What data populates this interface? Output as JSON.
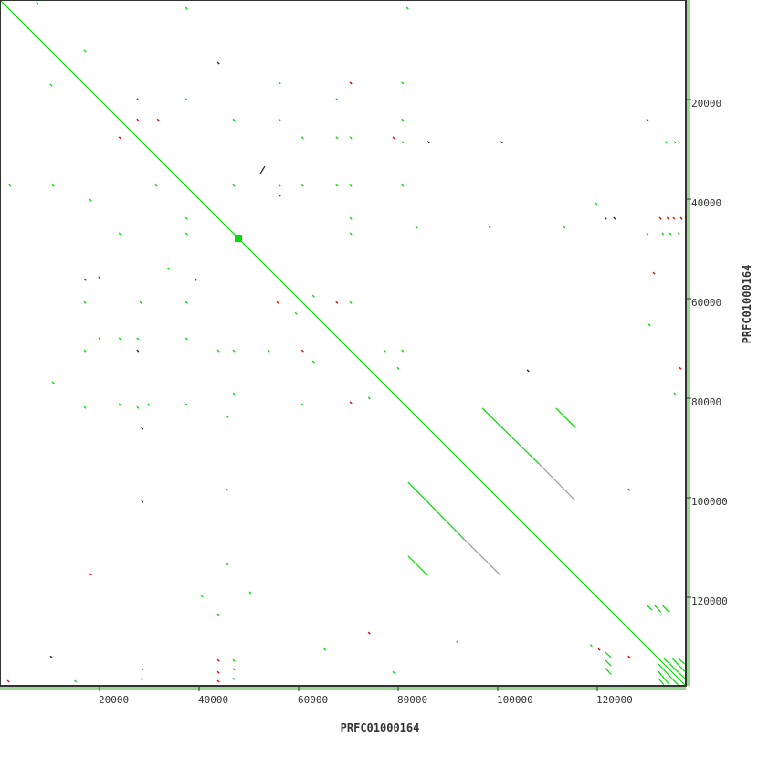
{
  "chart_data": {
    "type": "scatter",
    "subtype": "dot-plot",
    "xlabel": "PRFC01000164",
    "ylabel": "PRFC01000164",
    "xlim": [
      0,
      137800
    ],
    "ylim": [
      0,
      137800
    ],
    "y_inverted": true,
    "x_ticks": [
      20000,
      40000,
      60000,
      80000,
      100000,
      120000
    ],
    "y_ticks": [
      20000,
      40000,
      60000,
      80000,
      100000,
      120000
    ],
    "x_tick_labels": [
      "20000",
      "40000",
      "60000",
      "80000",
      "100000",
      "120000"
    ],
    "y_tick_labels": [
      "20000",
      "40000",
      "60000",
      "80000",
      "100000",
      "120000"
    ],
    "grid": false,
    "colors": {
      "forward": "#00dd00",
      "reverse": "#ee0000",
      "other": "#222222",
      "weak": "#999999",
      "coverage": "#99d890",
      "axis": "#333333"
    },
    "segments": [
      {
        "x1": 0,
        "y1": 0,
        "x2": 137800,
        "y2": 137800,
        "c": "forward"
      },
      {
        "x1": 96900,
        "y1": 82000,
        "x2": 108300,
        "y2": 93200,
        "c": "forward"
      },
      {
        "x1": 108300,
        "y1": 93200,
        "x2": 115600,
        "y2": 100600,
        "c": "weak"
      },
      {
        "x1": 82000,
        "y1": 96900,
        "x2": 93200,
        "y2": 108300,
        "c": "forward"
      },
      {
        "x1": 93200,
        "y1": 108300,
        "x2": 100600,
        "y2": 115600,
        "c": "weak"
      },
      {
        "x1": 111700,
        "y1": 82000,
        "x2": 115600,
        "y2": 85900,
        "c": "forward"
      },
      {
        "x1": 82000,
        "y1": 111700,
        "x2": 85900,
        "y2": 115600,
        "c": "forward"
      },
      {
        "x1": 133400,
        "y1": 132300,
        "x2": 137600,
        "y2": 136300,
        "c": "forward"
      },
      {
        "x1": 135100,
        "y1": 132300,
        "x2": 137600,
        "y2": 134900,
        "c": "forward"
      },
      {
        "x1": 136300,
        "y1": 132300,
        "x2": 137600,
        "y2": 133400,
        "c": "forward"
      },
      {
        "x1": 132300,
        "y1": 133400,
        "x2": 136200,
        "y2": 137600,
        "c": "forward"
      },
      {
        "x1": 132300,
        "y1": 134900,
        "x2": 134500,
        "y2": 137600,
        "c": "forward"
      },
      {
        "x1": 132300,
        "y1": 136300,
        "x2": 133400,
        "y2": 137600,
        "c": "forward"
      },
      {
        "x1": 129900,
        "y1": 121500,
        "x2": 131000,
        "y2": 122600,
        "c": "forward"
      },
      {
        "x1": 131400,
        "y1": 121500,
        "x2": 132800,
        "y2": 123000,
        "c": "forward"
      },
      {
        "x1": 133000,
        "y1": 121500,
        "x2": 134400,
        "y2": 123000,
        "c": "forward"
      },
      {
        "x1": 121500,
        "y1": 130900,
        "x2": 122800,
        "y2": 132100,
        "c": "forward"
      },
      {
        "x1": 121500,
        "y1": 132500,
        "x2": 122800,
        "y2": 133800,
        "c": "forward"
      },
      {
        "x1": 121500,
        "y1": 134100,
        "x2": 122800,
        "y2": 135500,
        "c": "forward"
      },
      {
        "x1": 52300,
        "y1": 34900,
        "x2": 53200,
        "y2": 33400,
        "c": "other"
      }
    ],
    "points": [
      [
        27500,
        19800,
        "reverse"
      ],
      [
        27500,
        23900,
        "reverse"
      ],
      [
        23900,
        27500,
        "reverse"
      ],
      [
        16900,
        10100,
        "forward"
      ],
      [
        10100,
        16900,
        "forward"
      ],
      [
        56000,
        16500,
        "forward"
      ],
      [
        70300,
        16500,
        "reverse"
      ],
      [
        67500,
        19800,
        "forward"
      ],
      [
        80700,
        16500,
        "forward"
      ],
      [
        56000,
        23900,
        "forward"
      ],
      [
        60600,
        27500,
        "forward"
      ],
      [
        67500,
        27500,
        "forward"
      ],
      [
        70300,
        27500,
        "forward"
      ],
      [
        80700,
        23900,
        "forward"
      ],
      [
        78900,
        27500,
        "reverse"
      ],
      [
        80700,
        28400,
        "forward"
      ],
      [
        85900,
        28400,
        "other"
      ],
      [
        100600,
        28400,
        "other"
      ],
      [
        1800,
        37100,
        "forward"
      ],
      [
        10500,
        37100,
        "forward"
      ],
      [
        31200,
        37100,
        "forward"
      ],
      [
        46800,
        37100,
        "forward"
      ],
      [
        56000,
        37100,
        "forward"
      ],
      [
        56000,
        39100,
        "reverse"
      ],
      [
        60600,
        37100,
        "forward"
      ],
      [
        67500,
        37100,
        "forward"
      ],
      [
        70300,
        37100,
        "forward"
      ],
      [
        80700,
        37100,
        "forward"
      ],
      [
        37300,
        43700,
        "forward"
      ],
      [
        70300,
        43700,
        "forward"
      ],
      [
        83500,
        45500,
        "forward"
      ],
      [
        98200,
        45500,
        "forward"
      ],
      [
        113200,
        45500,
        "forward"
      ],
      [
        23900,
        46800,
        "forward"
      ],
      [
        37300,
        46800,
        "forward"
      ],
      [
        70300,
        46800,
        "forward"
      ],
      [
        16900,
        56000,
        "reverse"
      ],
      [
        19800,
        55600,
        "reverse"
      ],
      [
        39100,
        56000,
        "reverse"
      ],
      [
        33600,
        53800,
        "forward"
      ],
      [
        55600,
        60600,
        "reverse"
      ],
      [
        37300,
        60600,
        "forward"
      ],
      [
        28100,
        60600,
        "forward"
      ],
      [
        16900,
        60600,
        "forward"
      ],
      [
        62800,
        59300,
        "forward"
      ],
      [
        67500,
        60600,
        "reverse"
      ],
      [
        70300,
        60600,
        "forward"
      ],
      [
        59300,
        62800,
        "forward"
      ],
      [
        19800,
        67900,
        "forward"
      ],
      [
        23900,
        67900,
        "forward"
      ],
      [
        27500,
        67900,
        "forward"
      ],
      [
        37300,
        67900,
        "forward"
      ],
      [
        16900,
        70300,
        "forward"
      ],
      [
        27500,
        70300,
        "other"
      ],
      [
        43700,
        70300,
        "forward"
      ],
      [
        46800,
        70300,
        "forward"
      ],
      [
        53800,
        70300,
        "forward"
      ],
      [
        60600,
        70300,
        "reverse"
      ],
      [
        77100,
        70300,
        "forward"
      ],
      [
        80700,
        70300,
        "forward"
      ],
      [
        62800,
        72500,
        "forward"
      ],
      [
        79800,
        73800,
        "forward"
      ],
      [
        10500,
        76700,
        "forward"
      ],
      [
        105900,
        74300,
        "other"
      ],
      [
        16900,
        81700,
        "forward"
      ],
      [
        23900,
        81100,
        "forward"
      ],
      [
        27500,
        81700,
        "forward"
      ],
      [
        29700,
        81100,
        "forward"
      ],
      [
        37300,
        81100,
        "forward"
      ],
      [
        46800,
        78900,
        "forward"
      ],
      [
        60600,
        81100,
        "forward"
      ],
      [
        70300,
        80700,
        "reverse"
      ],
      [
        74000,
        79800,
        "forward"
      ],
      [
        28400,
        85900,
        "other"
      ],
      [
        45500,
        83500,
        "forward"
      ],
      [
        28400,
        100600,
        "other"
      ],
      [
        45500,
        98200,
        "forward"
      ],
      [
        126200,
        98200,
        "reverse"
      ],
      [
        18000,
        115200,
        "reverse"
      ],
      [
        45500,
        113200,
        "forward"
      ],
      [
        40400,
        119600,
        "forward"
      ],
      [
        43700,
        123300,
        "forward"
      ],
      [
        50100,
        118900,
        "forward"
      ],
      [
        74000,
        127000,
        "reverse"
      ],
      [
        65100,
        130300,
        "forward"
      ],
      [
        91700,
        128800,
        "forward"
      ],
      [
        131200,
        54700,
        "reverse"
      ],
      [
        130300,
        65100,
        "forward"
      ],
      [
        136500,
        73800,
        "reverse"
      ],
      [
        135400,
        78900,
        "forward"
      ],
      [
        129900,
        23900,
        "reverse"
      ],
      [
        133600,
        28400,
        "forward"
      ],
      [
        135400,
        28400,
        "forward"
      ],
      [
        136200,
        28400,
        "forward"
      ],
      [
        129900,
        46800,
        "forward"
      ],
      [
        133000,
        46800,
        "forward"
      ],
      [
        134500,
        46800,
        "forward"
      ],
      [
        136200,
        46800,
        "forward"
      ],
      [
        132500,
        43700,
        "reverse"
      ],
      [
        134000,
        43700,
        "reverse"
      ],
      [
        135200,
        43700,
        "reverse"
      ],
      [
        136700,
        43700,
        "reverse"
      ],
      [
        121500,
        43700,
        "other"
      ],
      [
        123300,
        43700,
        "other"
      ],
      [
        119600,
        40700,
        "forward"
      ],
      [
        43700,
        12500,
        "other"
      ],
      [
        3300,
        3300,
        "forward"
      ],
      [
        7300,
        400,
        "forward"
      ],
      [
        37300,
        1500,
        "forward"
      ],
      [
        81700,
        1500,
        "forward"
      ],
      [
        37300,
        19800,
        "forward"
      ],
      [
        31600,
        23900,
        "reverse"
      ],
      [
        46800,
        23900,
        "forward"
      ],
      [
        18000,
        40000,
        "forward"
      ],
      [
        1500,
        136700,
        "reverse"
      ],
      [
        10100,
        131800,
        "other"
      ],
      [
        15000,
        136700,
        "forward"
      ],
      [
        43700,
        132500,
        "reverse"
      ],
      [
        43700,
        134900,
        "reverse"
      ],
      [
        43700,
        136700,
        "reverse"
      ],
      [
        46800,
        132500,
        "forward"
      ],
      [
        46800,
        134300,
        "forward"
      ],
      [
        46800,
        136200,
        "forward"
      ],
      [
        28400,
        134300,
        "forward"
      ],
      [
        28400,
        136200,
        "forward"
      ],
      [
        78900,
        134900,
        "forward"
      ],
      [
        126200,
        131800,
        "reverse"
      ],
      [
        120200,
        130300,
        "reverse"
      ],
      [
        118600,
        129500,
        "forward"
      ]
    ],
    "highlight": {
      "x": 47900,
      "y": 47900,
      "c": "forward"
    }
  }
}
